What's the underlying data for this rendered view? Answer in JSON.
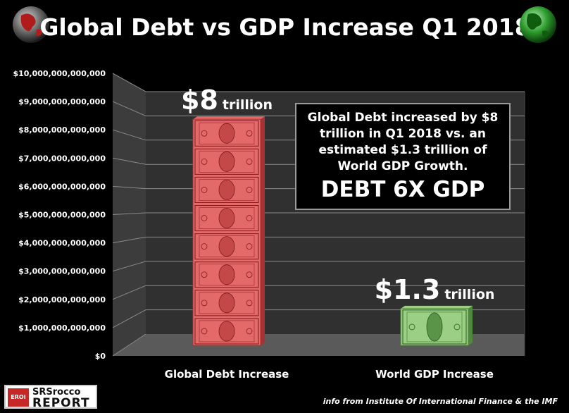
{
  "title": "Global Debt vs GDP Increase Q1 2018",
  "chart_data": {
    "type": "bar",
    "title": "Global Debt vs GDP Increase Q1 2018",
    "categories": [
      "Global Debt Increase",
      "World GDP Increase"
    ],
    "values": [
      8000000000000,
      1300000000000
    ],
    "bar_labels": [
      {
        "amount": "$8",
        "unit": "trillion"
      },
      {
        "amount": "$1.3",
        "unit": "trillion"
      }
    ],
    "ylim": [
      0,
      10000000000000
    ],
    "yticks": [
      {
        "value": 0,
        "label": "$0"
      },
      {
        "value": 1000000000000,
        "label": "$1,000,000,000,000"
      },
      {
        "value": 2000000000000,
        "label": "$2,000,000,000,000"
      },
      {
        "value": 3000000000000,
        "label": "$3,000,000,000,000"
      },
      {
        "value": 4000000000000,
        "label": "$4,000,000,000,000"
      },
      {
        "value": 5000000000000,
        "label": "$5,000,000,000,000"
      },
      {
        "value": 6000000000000,
        "label": "$6,000,000,000,000"
      },
      {
        "value": 7000000000000,
        "label": "$7,000,000,000,000"
      },
      {
        "value": 8000000000000,
        "label": "$8,000,000,000,000"
      },
      {
        "value": 9000000000000,
        "label": "$9,000,000,000,000"
      },
      {
        "value": 10000000000000,
        "label": "$10,000,000,000,000"
      }
    ],
    "xlabel": "",
    "ylabel": "",
    "grid": true,
    "colors": {
      "debt": "#e06060",
      "gdp": "#8fbf78"
    }
  },
  "annotation": {
    "text": "Global Debt increased by $8 trillion in Q1 2018 vs. an estimated $1.3 trillion of World GDP Growth.",
    "emphasis": "DEBT 6X GDP"
  },
  "icons": {
    "left": "globe-red-icon",
    "right": "globe-green-icon"
  },
  "logo": {
    "badge": "EROI",
    "line1": "SRSrocco",
    "line2": "REPORT"
  },
  "source": "info from Institute Of International Finance & the  IMF"
}
